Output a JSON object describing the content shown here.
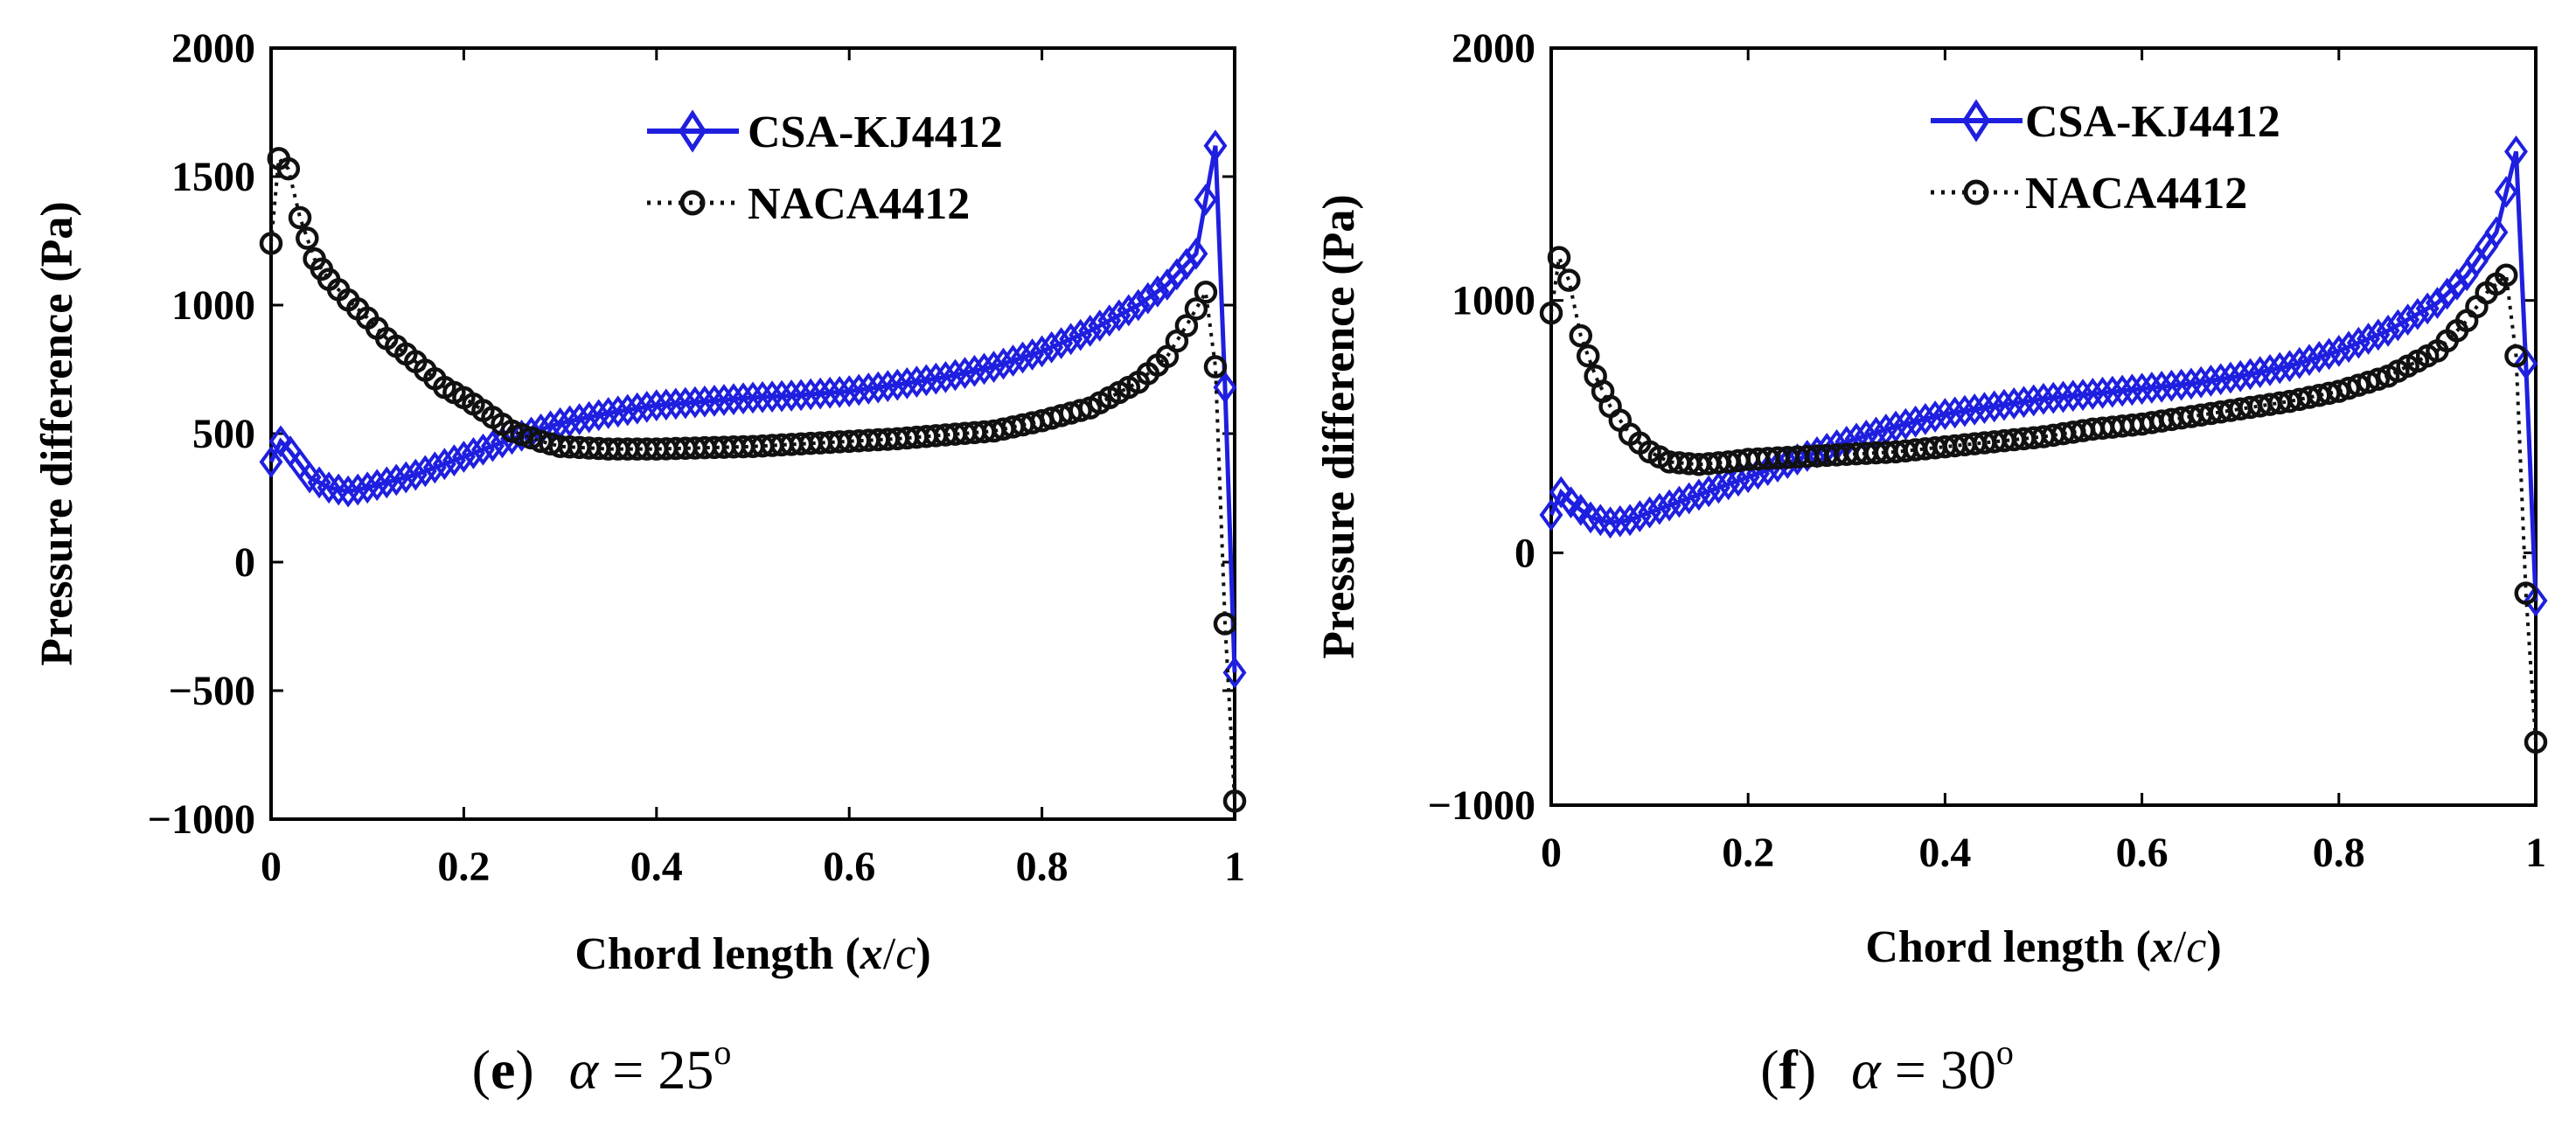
{
  "chart_data": [
    {
      "type": "line",
      "panel": "(e)",
      "caption_letter": "e",
      "caption_alpha": "α",
      "caption_value": "= 25",
      "caption_sup": "o",
      "xlabel_text": "Chord length (",
      "xlabel_x": "x",
      "xlabel_slash": "/",
      "xlabel_c": "c",
      "xlabel_close": ")",
      "ylabel": "Pressure difference (Pa)",
      "xlim": [
        0,
        1
      ],
      "ylim": [
        -1000,
        2000
      ],
      "xticks": [
        0,
        0.2,
        0.4,
        0.6,
        0.8,
        1
      ],
      "xtick_labels": [
        "0",
        "0.2",
        "0.4",
        "0.6",
        "0.8",
        "1"
      ],
      "yticks": [
        -1000,
        -500,
        0,
        500,
        1000,
        1500,
        2000
      ],
      "ytick_labels": [
        "−1000",
        "−500",
        "0",
        "500",
        "1000",
        "1500",
        "2000"
      ],
      "legend": [
        "CSA-KJ4412",
        "NACA4412"
      ],
      "series": [
        {
          "name": "CSA-KJ4412",
          "color": "#1f1fe0",
          "marker": "diamond",
          "x": [
            0,
            0.01,
            0.02,
            0.04,
            0.06,
            0.08,
            0.1,
            0.15,
            0.2,
            0.25,
            0.3,
            0.35,
            0.4,
            0.45,
            0.5,
            0.55,
            0.6,
            0.65,
            0.7,
            0.75,
            0.8,
            0.85,
            0.9,
            0.93,
            0.96,
            0.98,
            0.99,
            1.0
          ],
          "y": [
            390,
            470,
            430,
            330,
            290,
            275,
            290,
            340,
            410,
            480,
            540,
            580,
            610,
            625,
            640,
            650,
            665,
            690,
            720,
            760,
            820,
            900,
            1000,
            1080,
            1200,
            1620,
            680,
            -430
          ]
        },
        {
          "name": "NACA4412",
          "color": "#111111",
          "marker": "circle",
          "x": [
            0,
            0.008,
            0.018,
            0.03,
            0.045,
            0.06,
            0.08,
            0.1,
            0.12,
            0.15,
            0.18,
            0.2,
            0.22,
            0.25,
            0.28,
            0.3,
            0.35,
            0.4,
            0.45,
            0.5,
            0.55,
            0.6,
            0.65,
            0.7,
            0.75,
            0.8,
            0.85,
            0.9,
            0.93,
            0.95,
            0.97,
            0.98,
            0.99,
            1.0
          ],
          "y": [
            1240,
            1570,
            1530,
            1340,
            1180,
            1100,
            1020,
            950,
            870,
            780,
            680,
            640,
            590,
            510,
            470,
            450,
            440,
            440,
            445,
            450,
            460,
            470,
            480,
            495,
            510,
            550,
            600,
            700,
            800,
            920,
            1050,
            760,
            -240,
            -930
          ]
        }
      ]
    },
    {
      "type": "line",
      "panel": "(f)",
      "caption_letter": "f",
      "caption_alpha": "α",
      "caption_value": "= 30",
      "caption_sup": "o",
      "xlabel_text": "Chord length (",
      "xlabel_x": "x",
      "xlabel_slash": "/",
      "xlabel_c": "c",
      "xlabel_close": ")",
      "ylabel": "Pressure difference (Pa)",
      "xlim": [
        0,
        1
      ],
      "ylim": [
        -1000,
        2000
      ],
      "xticks": [
        0,
        0.2,
        0.4,
        0.6,
        0.8,
        1
      ],
      "xtick_labels": [
        "0",
        "0.2",
        "0.4",
        "0.6",
        "0.8",
        "1"
      ],
      "yticks": [
        -1000,
        0,
        1000,
        2000
      ],
      "ytick_labels": [
        "−1000",
        "0",
        "1000",
        "2000"
      ],
      "legend": [
        "CSA-KJ4412",
        "NACA4412"
      ],
      "series": [
        {
          "name": "CSA-KJ4412",
          "color": "#1f1fe0",
          "marker": "diamond",
          "x": [
            0,
            0.01,
            0.02,
            0.04,
            0.06,
            0.08,
            0.1,
            0.15,
            0.2,
            0.25,
            0.3,
            0.35,
            0.4,
            0.45,
            0.5,
            0.55,
            0.6,
            0.65,
            0.7,
            0.75,
            0.8,
            0.85,
            0.9,
            0.93,
            0.96,
            0.98,
            0.99,
            1.0
          ],
          "y": [
            150,
            240,
            200,
            140,
            120,
            130,
            160,
            230,
            300,
            370,
            440,
            500,
            550,
            580,
            610,
            630,
            650,
            670,
            700,
            740,
            800,
            880,
            990,
            1100,
            1270,
            1590,
            750,
            -190
          ]
        },
        {
          "name": "NACA4412",
          "color": "#111111",
          "marker": "circle",
          "x": [
            0,
            0.008,
            0.018,
            0.03,
            0.045,
            0.06,
            0.08,
            0.1,
            0.12,
            0.15,
            0.18,
            0.2,
            0.25,
            0.3,
            0.35,
            0.4,
            0.45,
            0.5,
            0.55,
            0.6,
            0.65,
            0.7,
            0.75,
            0.8,
            0.85,
            0.9,
            0.93,
            0.95,
            0.97,
            0.98,
            0.99,
            1.0
          ],
          "y": [
            950,
            1170,
            1080,
            860,
            700,
            580,
            470,
            400,
            360,
            350,
            360,
            370,
            380,
            390,
            400,
            420,
            440,
            460,
            490,
            510,
            540,
            570,
            600,
            640,
            700,
            800,
            920,
            1030,
            1100,
            780,
            -160,
            -750
          ]
        }
      ]
    }
  ]
}
